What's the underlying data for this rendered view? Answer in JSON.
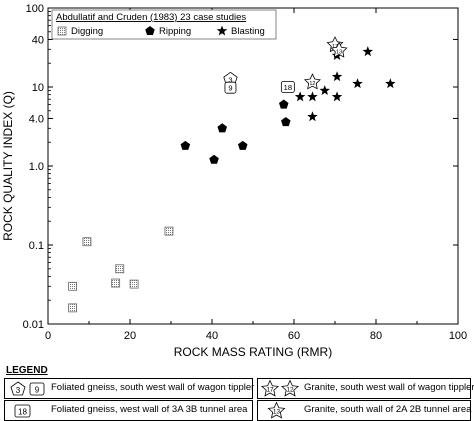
{
  "chart_data": {
    "type": "scatter",
    "x_axis": {
      "label": "ROCK MASS RATING (RMR)",
      "range": [
        0,
        100
      ],
      "ticks": [
        "0",
        "20",
        "40",
        "60",
        "80",
        "100"
      ],
      "scale": "linear"
    },
    "y_axis": {
      "label": "ROCK  QUALITY INDEX (Q)",
      "range": [
        0.01,
        100
      ],
      "ticks": [
        "0.01",
        "0.1",
        "1.0",
        "4.0",
        "10",
        "40",
        "100"
      ],
      "scale": "log"
    },
    "grid": false,
    "legend_title": "Abdullatif and Cruden (1983) 23 case studies",
    "legend_position": "top-left",
    "series": [
      {
        "name": "Digging",
        "marker": "dotted-square",
        "points": [
          {
            "x": 6,
            "y": 0.016
          },
          {
            "x": 6,
            "y": 0.03
          },
          {
            "x": 9.5,
            "y": 0.11
          },
          {
            "x": 16.5,
            "y": 0.033
          },
          {
            "x": 17.5,
            "y": 0.05
          },
          {
            "x": 21,
            "y": 0.032
          },
          {
            "x": 29.5,
            "y": 0.15
          }
        ]
      },
      {
        "name": "Ripping",
        "marker": "pentagon",
        "points": [
          {
            "x": 33.5,
            "y": 1.8
          },
          {
            "x": 40.5,
            "y": 1.2
          },
          {
            "x": 42.5,
            "y": 3.0
          },
          {
            "x": 47.5,
            "y": 1.8
          },
          {
            "x": 57.5,
            "y": 6.0
          },
          {
            "x": 58,
            "y": 3.6
          }
        ]
      },
      {
        "name": "Blasting",
        "marker": "star",
        "points": [
          {
            "x": 61.5,
            "y": 7.5
          },
          {
            "x": 64.5,
            "y": 7.5
          },
          {
            "x": 64.5,
            "y": 4.2
          },
          {
            "x": 67.5,
            "y": 9.0
          },
          {
            "x": 70.5,
            "y": 7.5
          },
          {
            "x": 70.5,
            "y": 13.5
          },
          {
            "x": 70.5,
            "y": 25
          },
          {
            "x": 75.5,
            "y": 11
          },
          {
            "x": 78,
            "y": 28
          },
          {
            "x": 83.5,
            "y": 11
          }
        ]
      }
    ],
    "annotations": [
      {
        "label": "3",
        "marker": "pentagon-outline",
        "x": 44.5,
        "y": 12.5
      },
      {
        "label": "9",
        "marker": "rect-outline",
        "x": 44.5,
        "y": 9.8
      },
      {
        "label": "18",
        "marker": "rect-outline",
        "x": 58.5,
        "y": 10
      },
      {
        "label": "12",
        "marker": "star-outline",
        "x": 64.5,
        "y": 11.5
      },
      {
        "label": "17",
        "marker": "star-outline",
        "x": 70,
        "y": 34
      },
      {
        "label": "13",
        "marker": "star-outline",
        "x": 71,
        "y": 29
      }
    ]
  },
  "bottom_legend": {
    "title": "LEGEND",
    "items": [
      {
        "symbols": [
          "3",
          "9"
        ],
        "text": "Foliated gneiss, south west wall of wagon tippler"
      },
      {
        "symbols": [
          "18"
        ],
        "text": "Foliated gneiss, west wall of 3A 3B tunnel area"
      },
      {
        "symbols": [
          "17",
          "12"
        ],
        "text": "Granite, south west wall of wagon tippler"
      },
      {
        "symbols": [
          "13"
        ],
        "text": "Granite, south wall of 2A 2B tunnel area"
      }
    ]
  }
}
